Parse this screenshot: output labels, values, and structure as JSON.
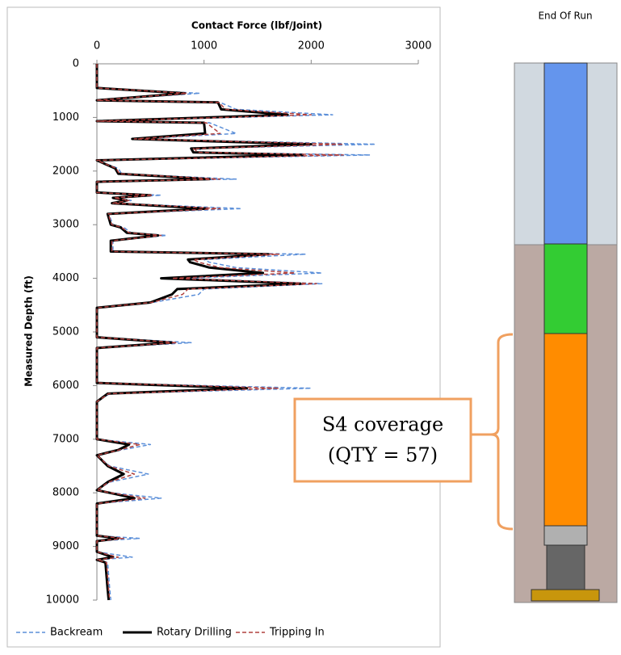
{
  "chart_data": {
    "type": "line",
    "orientation": "vertical",
    "title": "Contact Force (lbf/Joint)",
    "x_label": "Measured Depth (ft)",
    "x": [
      0,
      450,
      550,
      680,
      720,
      850,
      950,
      1070,
      1100,
      1300,
      1400,
      1500,
      1580,
      1650,
      1700,
      1800,
      1950,
      2050,
      2150,
      2200,
      2400,
      2450,
      2500,
      2550,
      2600,
      2700,
      2800,
      3000,
      3050,
      3150,
      3200,
      3300,
      3500,
      3550,
      3650,
      3700,
      3800,
      3900,
      4000,
      4100,
      4200,
      4300,
      4450,
      4550,
      5000,
      5100,
      5200,
      5300,
      5950,
      6050,
      6150,
      6300,
      7000,
      7100,
      7200,
      7300,
      7500,
      7650,
      7800,
      7950,
      8000,
      8100,
      8200,
      8500,
      8800,
      8850,
      8900,
      9100,
      9200,
      9250,
      9300,
      9800,
      10000
    ],
    "xlim": [
      0,
      10000
    ],
    "xticks": [
      0,
      1000,
      2000,
      3000,
      4000,
      5000,
      6000,
      7000,
      8000,
      9000,
      10000
    ],
    "ylim": [
      0,
      3000
    ],
    "yticks": [
      0,
      1000,
      2000,
      3000
    ],
    "legend": "bottom",
    "series": [
      {
        "name": "Backream",
        "color": "#5b8fd9",
        "style": "dashed",
        "width": 1.5,
        "values": [
          0,
          0,
          960,
          0,
          1150,
          1300,
          2200,
          0,
          1050,
          1300,
          380,
          2600,
          950,
          1000,
          2550,
          0,
          200,
          230,
          1300,
          0,
          0,
          600,
          170,
          320,
          160,
          1350,
          110,
          150,
          250,
          320,
          650,
          150,
          150,
          1950,
          1000,
          1050,
          1300,
          2100,
          800,
          2100,
          1000,
          950,
          520,
          0,
          0,
          0,
          880,
          0,
          0,
          2000,
          120,
          0,
          0,
          500,
          230,
          0,
          120,
          480,
          120,
          0,
          140,
          600,
          0,
          0,
          0,
          400,
          0,
          0,
          330,
          0,
          100,
          120,
          130
        ]
      },
      {
        "name": "Rotary Drilling",
        "color": "#000000",
        "style": "solid",
        "width": 3,
        "values": [
          0,
          0,
          820,
          0,
          1130,
          1160,
          1780,
          0,
          1000,
          1010,
          330,
          2000,
          880,
          900,
          1920,
          0,
          170,
          200,
          1050,
          0,
          0,
          500,
          150,
          280,
          140,
          1020,
          100,
          130,
          220,
          280,
          570,
          130,
          130,
          1600,
          850,
          870,
          1050,
          1550,
          600,
          1900,
          750,
          700,
          500,
          0,
          0,
          0,
          700,
          0,
          0,
          1400,
          100,
          0,
          0,
          300,
          200,
          0,
          100,
          250,
          100,
          0,
          120,
          350,
          0,
          0,
          0,
          200,
          0,
          0,
          150,
          0,
          80,
          100,
          110
        ]
      },
      {
        "name": "Tripping In",
        "color": "#b0413e",
        "style": "dashed",
        "width": 1.5,
        "values": [
          0,
          0,
          840,
          0,
          1140,
          1200,
          2000,
          0,
          1020,
          1150,
          350,
          2300,
          900,
          950,
          2300,
          0,
          180,
          210,
          1150,
          0,
          0,
          520,
          160,
          300,
          150,
          1150,
          105,
          140,
          230,
          300,
          600,
          140,
          140,
          1700,
          900,
          950,
          1150,
          1850,
          700,
          2050,
          850,
          800,
          510,
          0,
          0,
          0,
          750,
          0,
          0,
          1700,
          110,
          0,
          0,
          400,
          210,
          0,
          110,
          350,
          110,
          0,
          130,
          450,
          0,
          0,
          0,
          250,
          0,
          0,
          200,
          0,
          90,
          110,
          120
        ]
      }
    ]
  },
  "diagram": {
    "title": "End Of Run",
    "callout": [
      "S4 coverage",
      "(QTY = 57)"
    ]
  }
}
